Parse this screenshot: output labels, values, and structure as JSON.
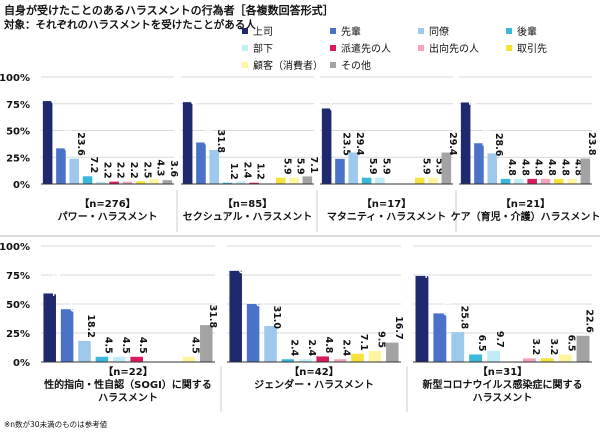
{
  "title": "自身が受けたことのあるハラスメントの行為者［各複数回答形式］",
  "subtitle": "対象：それぞれのハラスメントを受けたことがある人",
  "note": "※n数が30未満のものは参考値",
  "colors": {
    "上司": "#1f2a6e",
    "先輩": "#4a72c8",
    "同僚": "#9ec8ec",
    "後輩": "#39b8dc",
    "部下": "#c0ecf8",
    "派遣先の人": "#d81b60",
    "出向先の人": "#f4a3bd",
    "取引先": "#f5e23c",
    "顧客（消費者）": "#fff5a0",
    "その他": "#a3a3a3"
  },
  "legend": [
    "上司",
    "先輩",
    "同僚",
    "後輩",
    "部下",
    "派遣先の人",
    "出向先の人",
    "取引先",
    "顧客（消費者）",
    "その他"
  ],
  "chart_data": [
    {
      "type": "bar",
      "label_lines": [
        "【n=276】",
        "パワー・ハラスメント"
      ],
      "categories": [
        "上司",
        "先輩",
        "同僚",
        "後輩",
        "部下",
        "派遣先の人",
        "出向先の人",
        "取引先",
        "顧客（消費者）",
        "その他"
      ],
      "values": [
        77.5,
        33.3,
        23.6,
        7.2,
        2.2,
        2.2,
        2.2,
        2.5,
        4.3,
        3.6
      ],
      "ylim": [
        0,
        100
      ],
      "yticks": [
        "0%",
        "25%",
        "50%",
        "75%",
        "100%"
      ]
    },
    {
      "type": "bar",
      "label_lines": [
        "【n=85】",
        "セクシュアル・ハラスメント"
      ],
      "categories": [
        "上司",
        "先輩",
        "同僚",
        "後輩",
        "部下",
        "派遣先の人",
        "出向先の人",
        "取引先",
        "顧客（消費者）",
        "その他"
      ],
      "values": [
        76.5,
        38.8,
        31.8,
        1.2,
        2.4,
        1.2,
        0,
        5.9,
        5.9,
        7.1
      ],
      "ylim": [
        0,
        100
      ]
    },
    {
      "type": "bar",
      "label_lines": [
        "【n=17】",
        "マタニティ・ハラスメント"
      ],
      "categories": [
        "上司",
        "先輩",
        "同僚",
        "後輩",
        "部下",
        "派遣先の人",
        "出向先の人",
        "取引先",
        "顧客（消費者）",
        "その他"
      ],
      "values": [
        70.6,
        23.5,
        29.4,
        5.9,
        5.9,
        0,
        0,
        5.9,
        5.9,
        29.4
      ],
      "ylim": [
        0,
        100
      ]
    },
    {
      "type": "bar",
      "label_lines": [
        "【n=21】",
        "ケア（育児・介護）ハラスメント"
      ],
      "categories": [
        "上司",
        "先輩",
        "同僚",
        "後輩",
        "部下",
        "派遣先の人",
        "出向先の人",
        "取引先",
        "顧客（消費者）",
        "その他"
      ],
      "values": [
        76.2,
        38.1,
        28.6,
        4.8,
        4.8,
        4.8,
        4.8,
        4.8,
        4.8,
        23.8
      ],
      "ylim": [
        0,
        100
      ]
    },
    {
      "type": "bar",
      "label_lines": [
        "【n=22】",
        "性的指向・性自認（SOGI）に関する",
        "ハラスメント"
      ],
      "categories": [
        "上司",
        "先輩",
        "同僚",
        "後輩",
        "部下",
        "派遣先の人",
        "出向先の人",
        "取引先",
        "顧客（消費者）",
        "その他"
      ],
      "values": [
        59.1,
        45.5,
        18.2,
        4.5,
        4.5,
        4.5,
        0,
        0,
        4.5,
        31.8
      ],
      "ylim": [
        0,
        100
      ],
      "yticks": [
        "0%",
        "25%",
        "50%",
        "75%",
        "100%"
      ]
    },
    {
      "type": "bar",
      "label_lines": [
        "【n=42】",
        "ジェンダー・ハラスメント"
      ],
      "categories": [
        "上司",
        "先輩",
        "同僚",
        "後輩",
        "部下",
        "派遣先の人",
        "出向先の人",
        "取引先",
        "顧客（消費者）",
        "その他"
      ],
      "values": [
        78.6,
        50.0,
        31.0,
        2.4,
        2.4,
        4.8,
        2.4,
        7.1,
        9.5,
        16.7
      ],
      "ylim": [
        0,
        100
      ]
    },
    {
      "type": "bar",
      "label_lines": [
        "【n=31】",
        "新型コロナウイルス感染症に関する",
        "ハラスメント"
      ],
      "categories": [
        "上司",
        "先輩",
        "同僚",
        "後輩",
        "部下",
        "派遣先の人",
        "出向先の人",
        "取引先",
        "顧客（消費者）",
        "その他"
      ],
      "values": [
        74.2,
        41.9,
        25.8,
        6.5,
        9.7,
        0,
        3.2,
        3.2,
        6.5,
        22.6
      ],
      "ylim": [
        0,
        100
      ]
    }
  ]
}
